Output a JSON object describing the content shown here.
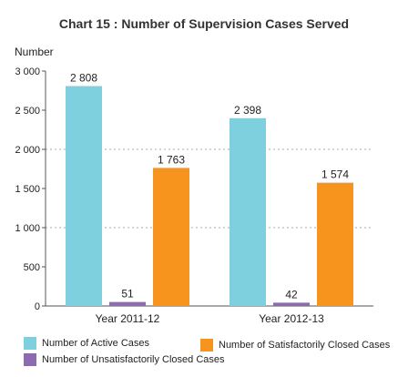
{
  "chart_data": {
    "type": "bar",
    "title": "Chart 15 : Number of Supervision Cases Served",
    "ylabel": "Number",
    "xlabel": "",
    "categories": [
      "Year 2011-12",
      "Year 2012-13"
    ],
    "series": [
      {
        "name": "Number of Active Cases",
        "values": [
          2808,
          2398
        ],
        "labels": [
          "2 808",
          "2 398"
        ],
        "color": "#7ed0df"
      },
      {
        "name": "Number of Unsatisfactorily Closed Cases",
        "values": [
          51,
          42
        ],
        "labels": [
          "51",
          "42"
        ],
        "color": "#8c6bb1"
      },
      {
        "name": "Number of Satisfactorily Closed Cases",
        "values": [
          1763,
          1574
        ],
        "labels": [
          "1 763",
          "1 574"
        ],
        "color": "#f7941d"
      }
    ],
    "ylim": [
      0,
      3000
    ],
    "yticks": [
      0,
      500,
      1000,
      1500,
      2000,
      2500,
      3000
    ],
    "ytick_labels": [
      "0",
      "500",
      "1 000",
      "1 500",
      "2 000",
      "2 500",
      "3 000"
    ],
    "grid": "dashed horizontal at 1 000 and 2 000",
    "legend": "bottom"
  }
}
